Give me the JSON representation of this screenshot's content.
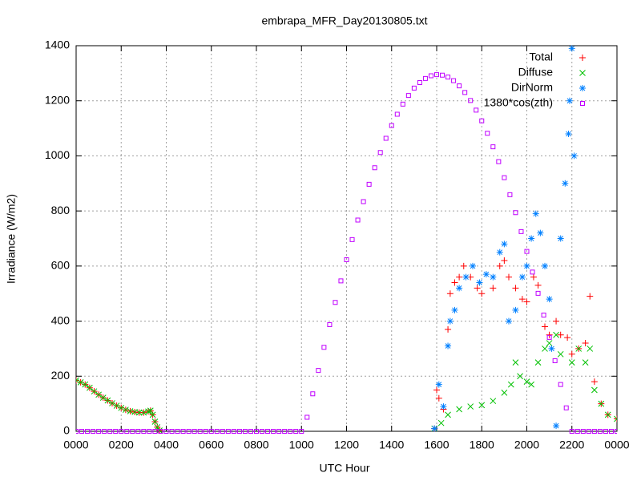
{
  "chart_data": {
    "type": "scatter",
    "title": "embrapa_MFR_Day20130805.txt",
    "x_label": "UTC Hour",
    "y_label": "Irradiance (W/m2)",
    "xlim": [
      0,
      24
    ],
    "ylim": [
      0,
      1400
    ],
    "xticks": [
      {
        "value": 0,
        "label": "0000"
      },
      {
        "value": 2,
        "label": "0200"
      },
      {
        "value": 4,
        "label": "0400"
      },
      {
        "value": 6,
        "label": "0600"
      },
      {
        "value": 8,
        "label": "0800"
      },
      {
        "value": 10,
        "label": "1000"
      },
      {
        "value": 12,
        "label": "1200"
      },
      {
        "value": 14,
        "label": "1400"
      },
      {
        "value": 16,
        "label": "1600"
      },
      {
        "value": 18,
        "label": "1800"
      },
      {
        "value": 20,
        "label": "2000"
      },
      {
        "value": 22,
        "label": "2200"
      },
      {
        "value": 24,
        "label": "0000"
      }
    ],
    "yticks": [
      0,
      200,
      400,
      600,
      800,
      1000,
      1200,
      1400
    ],
    "grid": true,
    "legend": "top-right",
    "series": [
      {
        "name": "Total",
        "color": "#ff0000",
        "marker": "plus",
        "x": [
          0,
          0.2,
          0.4,
          0.6,
          0.8,
          1.0,
          1.2,
          1.4,
          1.6,
          1.8,
          2.0,
          2.2,
          2.4,
          2.6,
          2.8,
          3.0,
          3.2,
          3.3,
          3.4,
          3.5,
          3.6,
          3.7,
          15.9,
          16.0,
          16.1,
          16.3,
          16.5,
          16.6,
          16.8,
          17.0,
          17.2,
          17.5,
          17.8,
          18.0,
          18.5,
          18.8,
          19.0,
          19.2,
          19.5,
          19.8,
          20.0,
          20.3,
          20.5,
          20.8,
          21.0,
          21.3,
          21.5,
          21.8,
          22.0,
          22.3,
          22.6,
          22.8,
          23.0,
          23.3,
          23.6,
          24.0
        ],
        "values": [
          185,
          178,
          170,
          158,
          145,
          133,
          122,
          112,
          102,
          93,
          85,
          78,
          73,
          70,
          68,
          68,
          72,
          75,
          60,
          35,
          15,
          3,
          10,
          150,
          120,
          80,
          370,
          500,
          540,
          560,
          600,
          560,
          520,
          500,
          520,
          600,
          620,
          560,
          520,
          480,
          470,
          560,
          530,
          380,
          350,
          400,
          350,
          340,
          280,
          300,
          320,
          490,
          180,
          100,
          60,
          45
        ]
      },
      {
        "name": "Diffuse",
        "color": "#00c000",
        "marker": "cross",
        "x": [
          0,
          0.2,
          0.4,
          0.6,
          0.8,
          1.0,
          1.2,
          1.4,
          1.6,
          1.8,
          2.0,
          2.2,
          2.4,
          2.6,
          2.8,
          3.0,
          3.2,
          3.3,
          3.4,
          3.5,
          3.6,
          3.7,
          15.9,
          16.2,
          16.5,
          17.0,
          17.5,
          18.0,
          18.5,
          19.0,
          19.3,
          19.5,
          19.7,
          20.0,
          20.2,
          20.5,
          20.8,
          21.0,
          21.3,
          21.5,
          22.0,
          22.3,
          22.6,
          22.8,
          23.0,
          23.3,
          23.6,
          24.0
        ],
        "values": [
          185,
          178,
          170,
          158,
          145,
          133,
          122,
          112,
          102,
          93,
          85,
          78,
          73,
          70,
          68,
          68,
          72,
          75,
          60,
          35,
          15,
          3,
          10,
          30,
          60,
          80,
          90,
          95,
          110,
          140,
          170,
          250,
          200,
          180,
          170,
          250,
          300,
          320,
          350,
          280,
          250,
          300,
          250,
          300,
          150,
          100,
          60,
          45
        ]
      },
      {
        "name": "DirNorm",
        "color": "#0080ff",
        "marker": "star",
        "x": [
          15.9,
          16.1,
          16.3,
          16.5,
          16.6,
          16.8,
          17.0,
          17.3,
          17.6,
          17.9,
          18.2,
          18.5,
          18.8,
          19.0,
          19.2,
          19.5,
          19.8,
          20.0,
          20.2,
          20.4,
          20.6,
          20.8,
          21.0,
          21.1,
          21.3,
          21.5,
          21.7,
          21.85,
          21.9,
          22.0,
          22.1
        ],
        "values": [
          10,
          170,
          90,
          310,
          400,
          440,
          520,
          560,
          600,
          540,
          570,
          560,
          650,
          680,
          400,
          440,
          560,
          600,
          700,
          790,
          720,
          600,
          480,
          300,
          20,
          700,
          900,
          1080,
          1200,
          1390,
          1000
        ]
      },
      {
        "name": "1380*cos(zth)",
        "color": "#c000ff",
        "marker": "square",
        "x": [
          0,
          0.25,
          0.5,
          0.75,
          1,
          1.25,
          1.5,
          1.75,
          2,
          2.25,
          2.5,
          2.75,
          3,
          3.25,
          3.5,
          3.75,
          4,
          4.25,
          4.5,
          4.75,
          5,
          5.25,
          5.5,
          5.75,
          6,
          6.25,
          6.5,
          6.75,
          7,
          7.25,
          7.5,
          7.75,
          8,
          8.25,
          8.5,
          8.75,
          9,
          9.25,
          9.5,
          9.75,
          10,
          10.25,
          10.5,
          10.75,
          11,
          11.25,
          11.5,
          11.75,
          12,
          12.25,
          12.5,
          12.75,
          13,
          13.25,
          13.5,
          13.75,
          14,
          14.25,
          14.5,
          14.75,
          15,
          15.25,
          15.5,
          15.75,
          16,
          16.25,
          16.5,
          16.75,
          17,
          17.25,
          17.5,
          17.75,
          18,
          18.25,
          18.5,
          18.75,
          19,
          19.25,
          19.5,
          19.75,
          20,
          20.25,
          20.5,
          20.75,
          21,
          21.25,
          21.5,
          21.75,
          22,
          22.25,
          22.5,
          22.75,
          23,
          23.25,
          23.5,
          23.75,
          24
        ],
        "values": [
          0,
          0,
          0,
          0,
          0,
          0,
          0,
          0,
          0,
          0,
          0,
          0,
          0,
          0,
          0,
          0,
          0,
          0,
          0,
          0,
          0,
          0,
          0,
          0,
          0,
          0,
          0,
          0,
          0,
          0,
          0,
          0,
          0,
          0,
          0,
          0,
          0,
          0,
          0,
          0,
          0,
          51,
          136,
          221,
          305,
          387,
          468,
          546,
          623,
          696,
          767,
          834,
          897,
          957,
          1012,
          1064,
          1110,
          1151,
          1188,
          1219,
          1246,
          1266,
          1281,
          1291,
          1295,
          1293,
          1286,
          1273,
          1254,
          1230,
          1201,
          1166,
          1127,
          1082,
          1033,
          979,
          921,
          859,
          794,
          725,
          653,
          578,
          501,
          422,
          341,
          256,
          170,
          85,
          0,
          0,
          0,
          0,
          0,
          0,
          0,
          0,
          0
        ]
      }
    ]
  }
}
